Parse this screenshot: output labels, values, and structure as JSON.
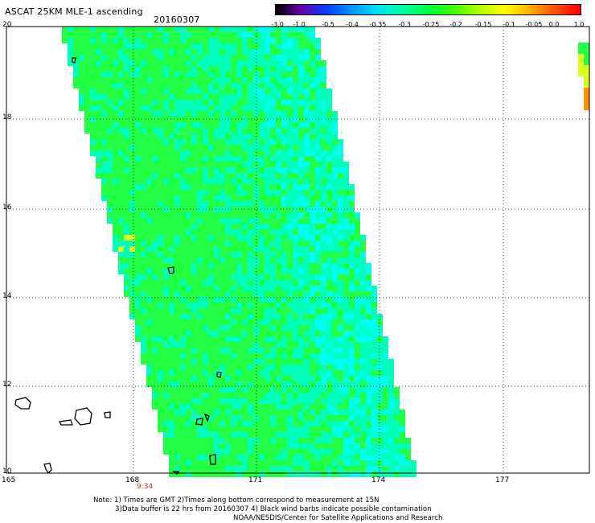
{
  "header": {
    "title": "ASCAT 25KM MLE-1 ascending",
    "date": "20160307"
  },
  "colorbar": {
    "ticks": [
      "-3.0",
      "-1.0",
      "-0.5",
      "-0.4",
      "-0.35",
      "-0.3",
      "-0.25",
      "-0.2",
      "-0.15",
      "-0.1",
      "-0.05",
      "0.0",
      "1.0"
    ],
    "colors": [
      "#000000",
      "#6a00a8",
      "#0040ff",
      "#0096ff",
      "#00e0ff",
      "#00ffa0",
      "#00ff40",
      "#40ff00",
      "#b0ff00",
      "#ffff00",
      "#ffb000",
      "#ff5000",
      "#ff0000"
    ]
  },
  "axes": {
    "lat_labels": [
      "20",
      "18",
      "16",
      "14",
      "12",
      "10"
    ],
    "lon_labels": [
      "165",
      "168",
      "171",
      "174",
      "177"
    ]
  },
  "swath": {
    "time_label": "9:34",
    "colors": {
      "dominant": "#22ff44",
      "secondary": "#00ffbb",
      "cyan": "#00ffee",
      "yellow": "#d8ff20",
      "orange": "#ff9000",
      "land": "#000000"
    }
  },
  "footer": {
    "note_line1": "Note: 1) Times are GMT 2)Times along bottom correspond to measurement at 15N",
    "note_line2": "3)Data buffer is 22 hrs from 20160307 4) Black wind barbs indicate possible contamination",
    "credit": "NOAA/NESDIS/Center for Satellite Applications and Research"
  }
}
